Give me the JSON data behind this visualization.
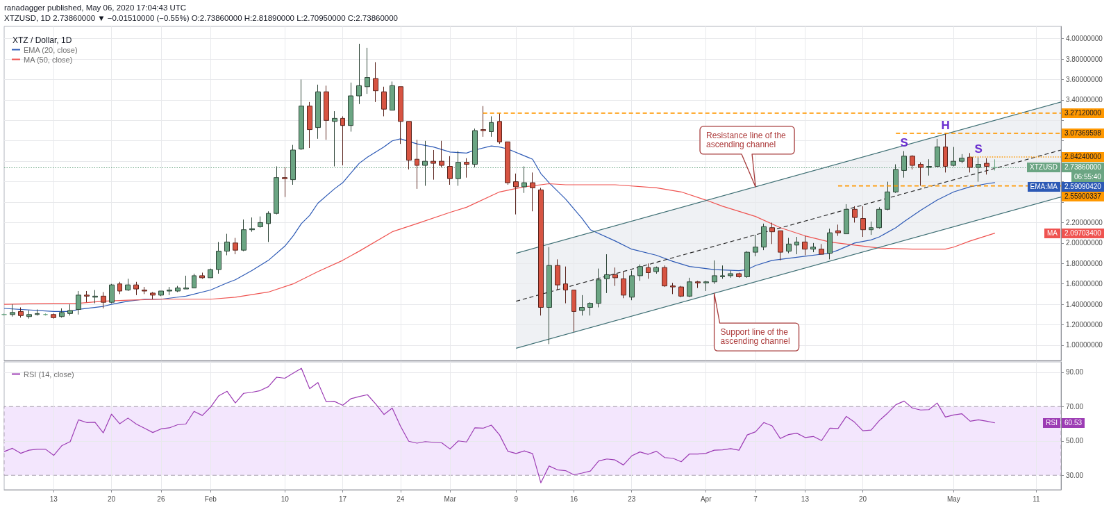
{
  "chart_data": [
    {
      "type": "candlestick",
      "title": "XTZ / Dollar, 1D",
      "annotations": [
        "ranadagger published, May 06, 2020 17:04:43 UTC",
        "XTZUSD, 1D 2.73860000 ▼ −0.01510000 (−0.55%) O:2.73860000 H:2.81890000 L:2.70950000 C:2.73860000",
        "06:55:40",
        {
          "text": "S",
          "x": "2020-04-25",
          "y": 2.9
        },
        {
          "text": "H",
          "x": "2020-04-30",
          "y": 3.07
        },
        {
          "text": "S",
          "x": "2020-05-04",
          "y": 2.84
        },
        "Resistance line of the ascending channel",
        "Support line of the ascending channel",
        "EMA:MA",
        "2.59090420",
        "MA",
        "2.09703400"
      ],
      "series": [
        {
          "name": "XTZUSD",
          "x": [
            "2020-01-07",
            "2020-01-08",
            "2020-01-09",
            "2020-01-10",
            "2020-01-11",
            "2020-01-12",
            "2020-01-13",
            "2020-01-14",
            "2020-01-15",
            "2020-01-16",
            "2020-01-17",
            "2020-01-18",
            "2020-01-19",
            "2020-01-20",
            "2020-01-21",
            "2020-01-22",
            "2020-01-23",
            "2020-01-24",
            "2020-01-25",
            "2020-01-26",
            "2020-01-27",
            "2020-01-28",
            "2020-01-29",
            "2020-01-30",
            "2020-01-31",
            "2020-02-01",
            "2020-02-02",
            "2020-02-03",
            "2020-02-04",
            "2020-02-05",
            "2020-02-06",
            "2020-02-07",
            "2020-02-08",
            "2020-02-09",
            "2020-02-10",
            "2020-02-11",
            "2020-02-12",
            "2020-02-13",
            "2020-02-14",
            "2020-02-15",
            "2020-02-16",
            "2020-02-17",
            "2020-02-18",
            "2020-02-19",
            "2020-02-20",
            "2020-02-21",
            "2020-02-22",
            "2020-02-23",
            "2020-02-24",
            "2020-02-25",
            "2020-02-26",
            "2020-02-27",
            "2020-02-28",
            "2020-02-29",
            "2020-03-01",
            "2020-03-02",
            "2020-03-03",
            "2020-03-04",
            "2020-03-05",
            "2020-03-06",
            "2020-03-07",
            "2020-03-08",
            "2020-03-09",
            "2020-03-10",
            "2020-03-11",
            "2020-03-12",
            "2020-03-13",
            "2020-03-14",
            "2020-03-15",
            "2020-03-16",
            "2020-03-17",
            "2020-03-18",
            "2020-03-19",
            "2020-03-20",
            "2020-03-21",
            "2020-03-22",
            "2020-03-23",
            "2020-03-24",
            "2020-03-25",
            "2020-03-26",
            "2020-03-27",
            "2020-03-28",
            "2020-03-29",
            "2020-03-30",
            "2020-03-31",
            "2020-04-01",
            "2020-04-02",
            "2020-04-03",
            "2020-04-04",
            "2020-04-05",
            "2020-04-06",
            "2020-04-07",
            "2020-04-08",
            "2020-04-09",
            "2020-04-10",
            "2020-04-11",
            "2020-04-12",
            "2020-04-13",
            "2020-04-14",
            "2020-04-15",
            "2020-04-16",
            "2020-04-17",
            "2020-04-18",
            "2020-04-19",
            "2020-04-20",
            "2020-04-21",
            "2020-04-22",
            "2020-04-23",
            "2020-04-24",
            "2020-04-25",
            "2020-04-26",
            "2020-04-27",
            "2020-04-28",
            "2020-04-29",
            "2020-04-30",
            "2020-05-01",
            "2020-05-02",
            "2020-05-03",
            "2020-05-04",
            "2020-05-05",
            "2020-05-06"
          ],
          "ohlc": [
            [
              1.3,
              1.31,
              1.29,
              1.3
            ],
            [
              1.3,
              1.4,
              1.28,
              1.32
            ],
            [
              1.33,
              1.37,
              1.27,
              1.29
            ],
            [
              1.28,
              1.34,
              1.26,
              1.3
            ],
            [
              1.3,
              1.35,
              1.29,
              1.31
            ],
            [
              1.3,
              1.31,
              1.29,
              1.3
            ],
            [
              1.3,
              1.31,
              1.26,
              1.27
            ],
            [
              1.28,
              1.36,
              1.27,
              1.32
            ],
            [
              1.31,
              1.4,
              1.29,
              1.34
            ],
            [
              1.35,
              1.53,
              1.3,
              1.49
            ],
            [
              1.49,
              1.53,
              1.42,
              1.48
            ],
            [
              1.47,
              1.54,
              1.41,
              1.48
            ],
            [
              1.48,
              1.52,
              1.36,
              1.42
            ],
            [
              1.42,
              1.6,
              1.41,
              1.59
            ],
            [
              1.6,
              1.62,
              1.5,
              1.53
            ],
            [
              1.54,
              1.65,
              1.53,
              1.59
            ],
            [
              1.59,
              1.62,
              1.49,
              1.55
            ],
            [
              1.54,
              1.57,
              1.5,
              1.53
            ],
            [
              1.51,
              1.52,
              1.45,
              1.49
            ],
            [
              1.49,
              1.53,
              1.48,
              1.53
            ],
            [
              1.53,
              1.57,
              1.49,
              1.54
            ],
            [
              1.53,
              1.58,
              1.52,
              1.56
            ],
            [
              1.55,
              1.68,
              1.55,
              1.56
            ],
            [
              1.56,
              1.7,
              1.56,
              1.68
            ],
            [
              1.68,
              1.71,
              1.65,
              1.66
            ],
            [
              1.66,
              1.75,
              1.66,
              1.74
            ],
            [
              1.74,
              2.01,
              1.7,
              1.92
            ],
            [
              1.92,
              2.09,
              1.88,
              2.01
            ],
            [
              2.0,
              2.05,
              1.89,
              1.93
            ],
            [
              1.93,
              2.23,
              1.92,
              2.13
            ],
            [
              2.13,
              2.25,
              2.11,
              2.14
            ],
            [
              2.16,
              2.26,
              2.15,
              2.2
            ],
            [
              2.19,
              2.31,
              2.01,
              2.29
            ],
            [
              2.29,
              2.75,
              2.28,
              2.64
            ],
            [
              2.64,
              2.74,
              2.45,
              2.63
            ],
            [
              2.62,
              2.96,
              2.57,
              2.91
            ],
            [
              2.92,
              3.6,
              2.91,
              3.34
            ],
            [
              3.34,
              3.38,
              2.93,
              3.11
            ],
            [
              3.13,
              3.55,
              3.02,
              3.48
            ],
            [
              3.48,
              3.54,
              3.01,
              3.2
            ],
            [
              3.19,
              3.29,
              2.75,
              3.22
            ],
            [
              3.22,
              3.24,
              2.76,
              3.15
            ],
            [
              3.15,
              3.57,
              3.09,
              3.44
            ],
            [
              3.44,
              3.95,
              3.36,
              3.54
            ],
            [
              3.53,
              3.91,
              3.46,
              3.62
            ],
            [
              3.61,
              3.77,
              3.38,
              3.49
            ],
            [
              3.48,
              3.53,
              3.24,
              3.31
            ],
            [
              3.3,
              3.58,
              3.3,
              3.54
            ],
            [
              3.53,
              3.53,
              2.97,
              3.19
            ],
            [
              3.19,
              3.19,
              2.72,
              2.81
            ],
            [
              2.82,
              3.01,
              2.53,
              2.76
            ],
            [
              2.76,
              3.0,
              2.56,
              2.8
            ],
            [
              2.8,
              2.91,
              2.62,
              2.78
            ],
            [
              2.8,
              3.0,
              2.74,
              2.76
            ],
            [
              2.75,
              2.85,
              2.57,
              2.63
            ],
            [
              2.63,
              2.9,
              2.56,
              2.79
            ],
            [
              2.79,
              2.83,
              2.64,
              2.77
            ],
            [
              2.77,
              3.12,
              2.74,
              3.1
            ],
            [
              3.11,
              3.34,
              3.04,
              3.1
            ],
            [
              3.09,
              3.24,
              3.04,
              3.18
            ],
            [
              3.19,
              3.27,
              2.97,
              2.99
            ],
            [
              2.99,
              2.99,
              2.57,
              2.59
            ],
            [
              2.6,
              2.68,
              2.28,
              2.55
            ],
            [
              2.55,
              2.75,
              2.49,
              2.59
            ],
            [
              2.59,
              2.69,
              2.31,
              2.54
            ],
            [
              2.52,
              2.54,
              1.29,
              1.37
            ],
            [
              1.37,
              1.96,
              1.01,
              1.78
            ],
            [
              1.78,
              1.84,
              1.54,
              1.59
            ],
            [
              1.6,
              1.77,
              1.41,
              1.54
            ],
            [
              1.54,
              1.54,
              1.13,
              1.33
            ],
            [
              1.34,
              1.49,
              1.29,
              1.37
            ],
            [
              1.37,
              1.42,
              1.29,
              1.41
            ],
            [
              1.41,
              1.75,
              1.37,
              1.64
            ],
            [
              1.65,
              1.89,
              1.51,
              1.69
            ],
            [
              1.69,
              1.76,
              1.58,
              1.66
            ],
            [
              1.65,
              1.72,
              1.46,
              1.49
            ],
            [
              1.47,
              1.73,
              1.44,
              1.68
            ],
            [
              1.68,
              1.79,
              1.63,
              1.77
            ],
            [
              1.76,
              1.8,
              1.65,
              1.71
            ],
            [
              1.72,
              1.77,
              1.7,
              1.76
            ],
            [
              1.76,
              1.78,
              1.57,
              1.58
            ],
            [
              1.58,
              1.61,
              1.5,
              1.57
            ],
            [
              1.57,
              1.58,
              1.47,
              1.48
            ],
            [
              1.48,
              1.66,
              1.47,
              1.62
            ],
            [
              1.62,
              1.63,
              1.56,
              1.61
            ],
            [
              1.61,
              1.63,
              1.53,
              1.62
            ],
            [
              1.62,
              1.83,
              1.6,
              1.68
            ],
            [
              1.67,
              1.78,
              1.65,
              1.68
            ],
            [
              1.68,
              1.73,
              1.66,
              1.7
            ],
            [
              1.7,
              1.71,
              1.66,
              1.67
            ],
            [
              1.67,
              1.92,
              1.66,
              1.91
            ],
            [
              1.91,
              2.08,
              1.87,
              1.96
            ],
            [
              1.96,
              2.19,
              1.93,
              2.16
            ],
            [
              2.15,
              2.2,
              1.99,
              2.11
            ],
            [
              2.12,
              2.12,
              1.83,
              1.91
            ],
            [
              1.92,
              2.05,
              1.9,
              1.99
            ],
            [
              1.98,
              2.06,
              1.89,
              2.01
            ],
            [
              2.01,
              2.07,
              1.88,
              1.94
            ],
            [
              1.94,
              2.0,
              1.91,
              1.96
            ],
            [
              1.94,
              1.99,
              1.89,
              1.89
            ],
            [
              1.9,
              2.14,
              1.84,
              2.1
            ],
            [
              2.12,
              2.18,
              2.07,
              2.1
            ],
            [
              2.09,
              2.38,
              2.09,
              2.33
            ],
            [
              2.33,
              2.36,
              2.2,
              2.25
            ],
            [
              2.24,
              2.36,
              2.06,
              2.13
            ],
            [
              2.13,
              2.21,
              2.08,
              2.15
            ],
            [
              2.15,
              2.35,
              2.14,
              2.33
            ],
            [
              2.33,
              2.6,
              2.32,
              2.5
            ],
            [
              2.5,
              2.77,
              2.49,
              2.72
            ],
            [
              2.71,
              2.9,
              2.64,
              2.85
            ],
            [
              2.85,
              2.86,
              2.72,
              2.76
            ],
            [
              2.77,
              2.79,
              2.56,
              2.74
            ],
            [
              2.74,
              2.82,
              2.66,
              2.75
            ],
            [
              2.75,
              3.02,
              2.74,
              2.94
            ],
            [
              2.94,
              3.07,
              2.69,
              2.75
            ],
            [
              2.76,
              2.94,
              2.75,
              2.8
            ],
            [
              2.8,
              2.87,
              2.78,
              2.83
            ],
            [
              2.84,
              2.88,
              2.69,
              2.74
            ],
            [
              2.74,
              2.84,
              2.6,
              2.77
            ],
            [
              2.78,
              2.83,
              2.67,
              2.75
            ],
            [
              2.7386,
              2.8189,
              2.7095,
              2.7386
            ]
          ],
          "colors": [
            "#6ba583",
            "#6ba583",
            "#d75442",
            "#6ba583",
            "#6ba583",
            "#6ba583",
            "#d75442",
            "#6ba583",
            "#6ba583",
            "#6ba583",
            "#d75442",
            "#6ba583",
            "#d75442",
            "#6ba583",
            "#d75442",
            "#6ba583",
            "#d75442",
            "#d75442",
            "#d75442",
            "#6ba583",
            "#6ba583",
            "#6ba583",
            "#6ba583",
            "#6ba583",
            "#d75442",
            "#6ba583",
            "#6ba583",
            "#6ba583",
            "#d75442",
            "#6ba583",
            "#6ba583",
            "#6ba583",
            "#6ba583",
            "#6ba583",
            "#d75442",
            "#6ba583",
            "#6ba583",
            "#d75442",
            "#6ba583",
            "#d75442",
            "#6ba583",
            "#d75442",
            "#6ba583",
            "#6ba583",
            "#6ba583",
            "#d75442",
            "#d75442",
            "#6ba583",
            "#d75442",
            "#d75442",
            "#d75442",
            "#6ba583",
            "#d75442",
            "#d75442",
            "#d75442",
            "#6ba583",
            "#d75442",
            "#6ba583",
            "#d75442",
            "#6ba583",
            "#d75442",
            "#d75442",
            "#d75442",
            "#6ba583",
            "#d75442",
            "#d75442",
            "#6ba583",
            "#d75442",
            "#d75442",
            "#d75442",
            "#6ba583",
            "#6ba583",
            "#6ba583",
            "#6ba583",
            "#d75442",
            "#d75442",
            "#6ba583",
            "#6ba583",
            "#d75442",
            "#6ba583",
            "#d75442",
            "#d75442",
            "#d75442",
            "#6ba583",
            "#d75442",
            "#6ba583",
            "#6ba583",
            "#6ba583",
            "#6ba583",
            "#d75442",
            "#6ba583",
            "#6ba583",
            "#6ba583",
            "#d75442",
            "#d75442",
            "#6ba583",
            "#6ba583",
            "#d75442",
            "#6ba583",
            "#d75442",
            "#6ba583",
            "#d75442",
            "#6ba583",
            "#d75442",
            "#d75442",
            "#6ba583",
            "#6ba583",
            "#6ba583",
            "#6ba583",
            "#6ba583",
            "#d75442",
            "#d75442",
            "#6ba583",
            "#6ba583",
            "#d75442",
            "#6ba583",
            "#6ba583",
            "#d75442",
            "#6ba583",
            "#d75442",
            "#6ba583"
          ]
        },
        {
          "type": "line",
          "name": "EMA (20, close)",
          "color": "#2c59b5",
          "x": [
            "2020-01-07",
            "2020-01-13",
            "2020-01-15",
            "2020-01-16",
            "2020-01-19",
            "2020-01-20",
            "2020-01-22",
            "2020-01-24",
            "2020-01-26",
            "2020-01-29",
            "2020-02-01",
            "2020-02-03",
            "2020-02-04",
            "2020-02-06",
            "2020-02-08",
            "2020-02-10",
            "2020-02-11",
            "2020-02-12",
            "2020-02-13",
            "2020-02-14",
            "2020-02-16",
            "2020-02-17",
            "2020-02-19",
            "2020-02-20",
            "2020-02-22",
            "2020-02-23",
            "2020-02-24",
            "2020-02-26",
            "2020-02-28",
            "2020-03-01",
            "2020-03-03",
            "2020-03-04",
            "2020-03-06",
            "2020-03-07",
            "2020-03-08",
            "2020-03-11",
            "2020-03-12",
            "2020-03-13",
            "2020-03-15",
            "2020-03-17",
            "2020-03-18",
            "2020-03-21",
            "2020-03-23",
            "2020-03-26",
            "2020-03-28",
            "2020-03-30",
            "2020-04-01",
            "2020-04-02",
            "2020-04-05",
            "2020-04-06",
            "2020-04-07",
            "2020-04-09",
            "2020-04-11",
            "2020-04-13",
            "2020-04-15",
            "2020-04-16",
            "2020-04-17",
            "2020-04-19",
            "2020-04-21",
            "2020-04-22",
            "2020-04-24",
            "2020-04-25",
            "2020-04-27",
            "2020-04-29",
            "2020-05-01",
            "2020-05-03",
            "2020-05-05",
            "2020-05-06"
          ],
          "values": [
            1.36,
            1.33,
            1.33,
            1.35,
            1.38,
            1.4,
            1.43,
            1.45,
            1.45,
            1.48,
            1.54,
            1.61,
            1.64,
            1.73,
            1.83,
            1.97,
            2.07,
            2.19,
            2.27,
            2.39,
            2.53,
            2.59,
            2.78,
            2.84,
            2.94,
            3.0,
            3.02,
            2.97,
            2.94,
            2.89,
            2.88,
            2.91,
            2.95,
            2.94,
            2.92,
            2.82,
            2.68,
            2.59,
            2.43,
            2.24,
            2.13,
            2.02,
            1.94,
            1.88,
            1.82,
            1.77,
            1.75,
            1.74,
            1.73,
            1.74,
            1.78,
            1.83,
            1.85,
            1.87,
            1.89,
            1.9,
            1.93,
            2.0,
            2.03,
            2.06,
            2.15,
            2.21,
            2.32,
            2.42,
            2.5,
            2.55,
            2.58,
            2.5909042
          ]
        },
        {
          "type": "line",
          "name": "MA (50, close)",
          "color": "#ef5350",
          "x": [
            "2020-01-07",
            "2020-01-13",
            "2020-01-16",
            "2020-01-19",
            "2020-01-22",
            "2020-01-26",
            "2020-02-01",
            "2020-02-04",
            "2020-02-08",
            "2020-02-11",
            "2020-02-14",
            "2020-02-17",
            "2020-02-19",
            "2020-02-23",
            "2020-02-26",
            "2020-03-01",
            "2020-03-03",
            "2020-03-07",
            "2020-03-10",
            "2020-03-13",
            "2020-03-15",
            "2020-03-21",
            "2020-03-26",
            "2020-03-29",
            "2020-04-01",
            "2020-04-03",
            "2020-04-07",
            "2020-04-10",
            "2020-04-13",
            "2020-04-16",
            "2020-04-19",
            "2020-04-22",
            "2020-04-26",
            "2020-04-30",
            "2020-05-01",
            "2020-05-03",
            "2020-05-06"
          ],
          "values": [
            1.4,
            1.41,
            1.41,
            1.43,
            1.44,
            1.45,
            1.45,
            1.47,
            1.52,
            1.6,
            1.72,
            1.83,
            1.92,
            2.11,
            2.19,
            2.3,
            2.35,
            2.5,
            2.55,
            2.58,
            2.57,
            2.57,
            2.54,
            2.5,
            2.42,
            2.36,
            2.26,
            2.15,
            2.07,
            2.01,
            1.98,
            1.95,
            1.94,
            1.94,
            1.96,
            2.02,
            2.097034
          ]
        },
        {
          "type": "line",
          "color": "#3d6e73",
          "x": [
            "2020-03-09",
            "2020-05-14"
          ],
          "values": [
            1.9,
            3.38
          ]
        },
        {
          "type": "line",
          "color": "#3d6e73",
          "x": [
            "2020-03-09",
            "2020-05-14"
          ],
          "values": [
            0.97,
            2.45
          ]
        },
        {
          "type": "line",
          "color": "#2b2b2b",
          "line_style": "dashed",
          "x": [
            "2020-03-09",
            "2020-05-14"
          ],
          "values": [
            1.43,
            2.91
          ],
          "lower": [
            0.97,
            2.45
          ],
          "upper": [
            1.9,
            3.38
          ]
        },
        {
          "type": "line",
          "color": "#ff9800",
          "line_style": "dashed",
          "x": [
            "2020-03-05",
            "2020-05-14"
          ],
          "values": [
            3.2712,
            3.2712
          ],
          "value_labels": [
            null,
            "3.27120000"
          ]
        },
        {
          "type": "line",
          "color": "#ff9800",
          "line_style": "dashed",
          "x": [
            "2020-04-24",
            "2020-05-14"
          ],
          "values": [
            3.07369598,
            3.07369598
          ],
          "value_labels": [
            null,
            "3.07369598"
          ]
        },
        {
          "type": "line",
          "color": "#ff9800",
          "line_style": "dotted",
          "x": [
            "2020-05-03",
            "2020-05-14"
          ],
          "values": [
            2.8424,
            2.8424
          ],
          "value_labels": [
            null,
            "2.84240000"
          ]
        },
        {
          "type": "line",
          "color": "#ff9800",
          "line_style": "dashed",
          "x": [
            "2020-04-17",
            "2020-05-14"
          ],
          "values": [
            2.55900337,
            2.55900337
          ],
          "value_labels": [
            null,
            "2.55900337"
          ]
        }
      ],
      "ref_lines": [
        {
          "axis": "y",
          "value": 2.7386,
          "label": "2.73860000",
          "color": "#6ba583",
          "line_style": "dotted"
        }
      ],
      "xlim": [
        "2020-01-07",
        "2020-05-14"
      ],
      "xticks": [
        {
          "value": "2020-01-13",
          "label": null
        },
        {
          "value": "2020-01-20",
          "label": null
        },
        {
          "value": "2020-01-26",
          "label": null
        },
        {
          "value": "2020-02-01",
          "label": null
        },
        {
          "value": "2020-02-10",
          "label": null
        },
        {
          "value": "2020-02-17",
          "label": null
        },
        {
          "value": "2020-02-24",
          "label": null
        },
        {
          "value": "2020-03-01",
          "label": null
        },
        {
          "value": "2020-03-09",
          "label": null
        },
        {
          "value": "2020-03-16",
          "label": null
        },
        {
          "value": "2020-03-23",
          "label": null
        },
        {
          "value": "2020-04-01",
          "label": null
        },
        {
          "value": "2020-04-07",
          "label": null
        },
        {
          "value": "2020-04-13",
          "label": null
        },
        {
          "value": "2020-04-20",
          "label": null
        },
        {
          "value": "2020-05-01",
          "label": null
        },
        {
          "value": "2020-05-11",
          "label": null
        }
      ],
      "ylim": [
        0.85,
        4.12
      ],
      "yticks": [
        {
          "value": 1,
          "label": "1.00000000"
        },
        {
          "value": 1.2,
          "label": "1.20000000"
        },
        {
          "value": 1.4,
          "label": "1.40000000"
        },
        {
          "value": 1.6,
          "label": "1.60000000"
        },
        {
          "value": 1.8,
          "label": "1.80000000"
        },
        {
          "value": 2,
          "label": "2.00000000"
        },
        {
          "value": 2.2,
          "label": "2.20000000"
        },
        {
          "value": 2.4,
          "label": null
        },
        {
          "value": 2.6,
          "label": null
        },
        {
          "value": 2.8,
          "label": null
        },
        {
          "value": 3,
          "label": null
        },
        {
          "value": 3.2,
          "label": null
        },
        {
          "value": 3.4,
          "label": "3.40000000"
        },
        {
          "value": 3.6,
          "label": "3.60000000"
        },
        {
          "value": 3.8,
          "label": "3.80000000"
        },
        {
          "value": 4,
          "label": "4.00000000"
        }
      ],
      "grid": true,
      "legend": "top left",
      "tick_labels": "y",
      "marker": "none"
    },
    {
      "type": "line",
      "x": [
        "2020-01-07",
        "2020-01-08",
        "2020-01-09",
        "2020-01-10",
        "2020-01-11",
        "2020-01-12",
        "2020-01-13",
        "2020-01-14",
        "2020-01-15",
        "2020-01-16",
        "2020-01-17",
        "2020-01-18",
        "2020-01-19",
        "2020-01-20",
        "2020-01-21",
        "2020-01-22",
        "2020-01-23",
        "2020-01-24",
        "2020-01-25",
        "2020-01-26",
        "2020-01-27",
        "2020-01-28",
        "2020-01-29",
        "2020-01-30",
        "2020-01-31",
        "2020-02-01",
        "2020-02-02",
        "2020-02-03",
        "2020-02-04",
        "2020-02-05",
        "2020-02-06",
        "2020-02-07",
        "2020-02-08",
        "2020-02-09",
        "2020-02-10",
        "2020-02-11",
        "2020-02-12",
        "2020-02-13",
        "2020-02-14",
        "2020-02-15",
        "2020-02-16",
        "2020-02-17",
        "2020-02-18",
        "2020-02-19",
        "2020-02-20",
        "2020-02-21",
        "2020-02-22",
        "2020-02-23",
        "2020-02-24",
        "2020-02-25",
        "2020-02-26",
        "2020-02-27",
        "2020-02-28",
        "2020-02-29",
        "2020-03-01",
        "2020-03-02",
        "2020-03-03",
        "2020-03-04",
        "2020-03-05",
        "2020-03-06",
        "2020-03-07",
        "2020-03-08",
        "2020-03-09",
        "2020-03-10",
        "2020-03-11",
        "2020-03-12",
        "2020-03-13",
        "2020-03-14",
        "2020-03-15",
        "2020-03-16",
        "2020-03-17",
        "2020-03-18",
        "2020-03-19",
        "2020-03-20",
        "2020-03-21",
        "2020-03-22",
        "2020-03-23",
        "2020-03-24",
        "2020-03-25",
        "2020-03-26",
        "2020-03-27",
        "2020-03-28",
        "2020-03-29",
        "2020-03-30",
        "2020-03-31",
        "2020-04-01",
        "2020-04-02",
        "2020-04-03",
        "2020-04-04",
        "2020-04-05",
        "2020-04-06",
        "2020-04-07",
        "2020-04-08",
        "2020-04-09",
        "2020-04-10",
        "2020-04-11",
        "2020-04-12",
        "2020-04-13",
        "2020-04-14",
        "2020-04-15",
        "2020-04-16",
        "2020-04-17",
        "2020-04-18",
        "2020-04-19",
        "2020-04-20",
        "2020-04-21",
        "2020-04-22",
        "2020-04-23",
        "2020-04-24",
        "2020-04-25",
        "2020-04-26",
        "2020-04-27",
        "2020-04-28",
        "2020-04-29",
        "2020-04-30",
        "2020-05-01",
        "2020-05-02",
        "2020-05-03",
        "2020-05-04",
        "2020-05-05",
        "2020-05-06"
      ],
      "series": [
        {
          "name": "RSI (14, close)",
          "color": "#9c3cb4",
          "values": [
            43.8,
            45.7,
            42.8,
            44.6,
            45.2,
            45.2,
            41.6,
            47.3,
            49.6,
            62.3,
            60.7,
            60.9,
            54.7,
            65.6,
            60.0,
            63.3,
            59.8,
            57.4,
            54.9,
            57.0,
            57.6,
            59.4,
            59.8,
            67.2,
            64.8,
            69.7,
            76.3,
            78.9,
            72.1,
            77.7,
            78.3,
            79.3,
            81.6,
            87.1,
            86.5,
            89.4,
            92.3,
            80.4,
            84.0,
            72.8,
            73.0,
            70.7,
            74.6,
            75.8,
            76.9,
            71.5,
            65.4,
            69.1,
            58.6,
            49.8,
            48.7,
            49.6,
            49.2,
            48.9,
            45.3,
            50.0,
            49.4,
            57.6,
            57.4,
            59.2,
            53.5,
            44.0,
            42.7,
            44.2,
            42.6,
            25.6,
            35.4,
            33.2,
            32.7,
            30.3,
            31.3,
            32.5,
            38.3,
            39.5,
            38.9,
            36.0,
            41.3,
            43.6,
            42.2,
            44.0,
            40.3,
            39.9,
            37.9,
            42.4,
            42.4,
            42.8,
            44.6,
            44.8,
            45.5,
            44.6,
            53.5,
            55.3,
            60.7,
            58.8,
            51.4,
            53.7,
            54.5,
            52.0,
            52.6,
            50.2,
            57.4,
            57.2,
            64.3,
            60.9,
            55.9,
            56.3,
            61.9,
            66.2,
            71.1,
            73.2,
            69.1,
            68.0,
            68.2,
            72.1,
            63.9,
            65.1,
            65.8,
            61.5,
            62.3,
            61.5,
            60.53
          ]
        }
      ],
      "annotations": [
        "RSI",
        "60.53"
      ],
      "bands": [
        {
          "axis": "y",
          "from": 30,
          "to": 70,
          "color": "#f3e6fd"
        }
      ],
      "xlim": [
        "2020-01-07",
        "2020-05-14"
      ],
      "xticks": [
        {
          "value": "2020-01-13",
          "label": "13"
        },
        {
          "value": "2020-01-20",
          "label": "20"
        },
        {
          "value": "2020-01-26",
          "label": "26"
        },
        {
          "value": "2020-02-01",
          "label": "Feb"
        },
        {
          "value": "2020-02-10",
          "label": "10"
        },
        {
          "value": "2020-02-17",
          "label": "17"
        },
        {
          "value": "2020-02-24",
          "label": "24"
        },
        {
          "value": "2020-03-01",
          "label": "Mar"
        },
        {
          "value": "2020-03-09",
          "label": "9"
        },
        {
          "value": "2020-03-16",
          "label": "16"
        },
        {
          "value": "2020-03-23",
          "label": "23"
        },
        {
          "value": "2020-04-01",
          "label": "Apr"
        },
        {
          "value": "2020-04-07",
          "label": "7"
        },
        {
          "value": "2020-04-13",
          "label": "13"
        },
        {
          "value": "2020-04-20",
          "label": "20"
        },
        {
          "value": "2020-05-01",
          "label": "May"
        },
        {
          "value": "2020-05-11",
          "label": "11"
        }
      ],
      "ylim": [
        21.6,
        96
      ],
      "yticks": [
        {
          "value": 30,
          "label": "30.00"
        },
        {
          "value": 50,
          "label": "50.00"
        },
        {
          "value": 70,
          "label": "70.00"
        },
        {
          "value": 90,
          "label": "90.00"
        }
      ],
      "grid": true,
      "legend": "top left",
      "marker": "none"
    }
  ]
}
